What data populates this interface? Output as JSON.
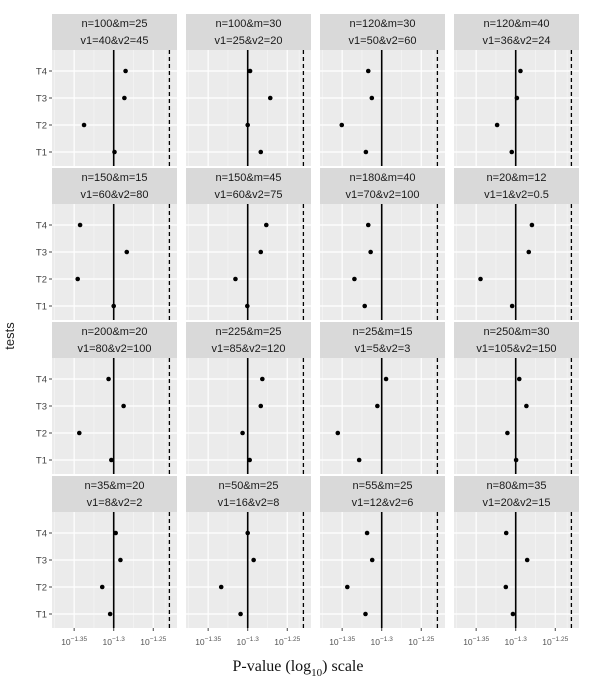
{
  "chart_data": {
    "type": "scatter",
    "xlabel_main": "P-value (log",
    "xlabel_sub": "10",
    "xlabel_tail": ") scale",
    "ylabel": "tests",
    "categories": [
      "T1",
      "T2",
      "T3",
      "T4"
    ],
    "x_scale": "log10",
    "xlim_exponent": [
      -1.378,
      -1.22
    ],
    "x_ticks": [
      {
        "exp": -1.35,
        "base": "10",
        "sup": "−1.35"
      },
      {
        "exp": -1.3,
        "base": "10",
        "sup": "−1.3"
      },
      {
        "exp": -1.25,
        "base": "10",
        "sup": "−1.25"
      }
    ],
    "solid_line_exponent": -1.3,
    "dashed_line_exponent": -1.2296,
    "grid": true,
    "panels": [
      {
        "title1": "n=100&m=25",
        "title2": "v1=40&v2=45",
        "T1": -1.299,
        "T2": -1.3375,
        "T3": -1.2865,
        "T4": -1.285
      },
      {
        "title1": "n=100&m=30",
        "title2": "v1=25&v2=20",
        "T1": -1.2835,
        "T2": -1.3,
        "T3": -1.2715,
        "T4": -1.297
      },
      {
        "title1": "n=120&m=30",
        "title2": "v1=50&v2=60",
        "T1": -1.32,
        "T2": -1.3505,
        "T3": -1.3125,
        "T4": -1.317
      },
      {
        "title1": "n=120&m=40",
        "title2": "v1=36&v2=24",
        "T1": -1.305,
        "T2": -1.3235,
        "T3": -1.2985,
        "T4": -1.294
      },
      {
        "title1": "n=150&m=15",
        "title2": "v1=60&v2=80",
        "T1": -1.3,
        "T2": -1.3455,
        "T3": -1.2835,
        "T4": -1.3425
      },
      {
        "title1": "n=150&m=45",
        "title2": "v1=60&v2=75",
        "T1": -1.3005,
        "T2": -1.3155,
        "T3": -1.2835,
        "T4": -1.2765
      },
      {
        "title1": "n=180&m=40",
        "title2": "v1=70&v2=100",
        "T1": -1.3215,
        "T2": -1.3345,
        "T3": -1.314,
        "T4": -1.317
      },
      {
        "title1": "n=20&m=12",
        "title2": "v1=1&v2=0.5",
        "T1": -1.3045,
        "T2": -1.3445,
        "T3": -1.2835,
        "T4": -1.2795
      },
      {
        "title1": "n=200&m=20",
        "title2": "v1=80&v2=100",
        "T1": -1.303,
        "T2": -1.3435,
        "T3": -1.2875,
        "T4": -1.3065
      },
      {
        "title1": "n=225&m=25",
        "title2": "v1=85&v2=120",
        "T1": -1.2975,
        "T2": -1.3065,
        "T3": -1.2835,
        "T4": -1.2815
      },
      {
        "title1": "n=25&m=15",
        "title2": "v1=5&v2=3",
        "T1": -1.3285,
        "T2": -1.3555,
        "T3": -1.3055,
        "T4": -1.2945
      },
      {
        "title1": "n=250&m=30",
        "title2": "v1=105&v2=150",
        "T1": -1.2995,
        "T2": -1.3105,
        "T3": -1.2865,
        "T4": -1.2955
      },
      {
        "title1": "n=35&m=20",
        "title2": "v1=8&v2=2",
        "T1": -1.3045,
        "T2": -1.3145,
        "T3": -1.2915,
        "T4": -1.2975
      },
      {
        "title1": "n=50&m=25",
        "title2": "v1=16&v2=8",
        "T1": -1.309,
        "T2": -1.3335,
        "T3": -1.2925,
        "T4": -1.3
      },
      {
        "title1": "n=55&m=25",
        "title2": "v1=12&v2=6",
        "T1": -1.3205,
        "T2": -1.3435,
        "T3": -1.312,
        "T4": -1.3185
      },
      {
        "title1": "n=80&m=35",
        "title2": "v1=20&v2=15",
        "T1": -1.3035,
        "T2": -1.3125,
        "T3": -1.2855,
        "T4": -1.312
      }
    ]
  }
}
